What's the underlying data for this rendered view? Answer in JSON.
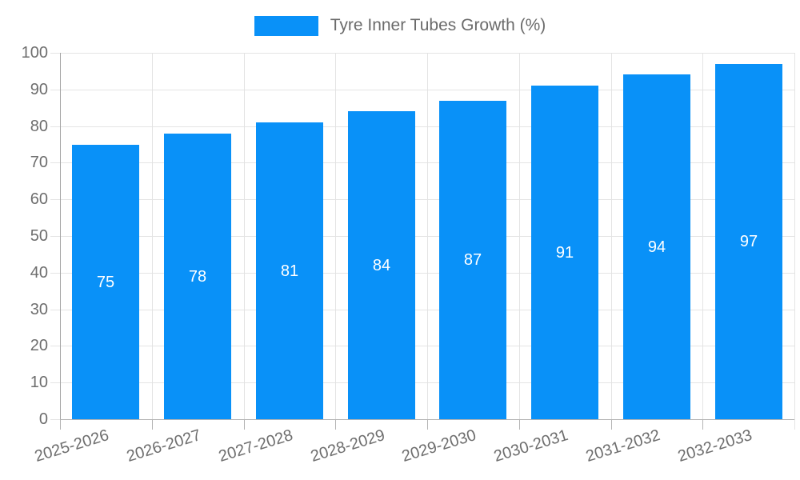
{
  "legend": {
    "label": "Tyre Inner Tubes Growth (%)"
  },
  "colors": {
    "bar": "#0991f8",
    "grid_light": "#e3e3e3",
    "axis_line": "#a6a6a6",
    "baseline": "#b3b3b3",
    "tick_left": "#e3e3e3",
    "tick_bottom": "#b3b3b3",
    "label_grey": "#6e6e6e",
    "legend_text": "#6b6b6b",
    "value_label": "#ffffff"
  },
  "chart_data": {
    "type": "bar",
    "title": "Tyre Inner Tubes Growth (%)",
    "categories": [
      "2025-2026",
      "2026-2027",
      "2027-2028",
      "2028-2029",
      "2029-2030",
      "2030-2031",
      "2031-2032",
      "2032-2033"
    ],
    "values": [
      75,
      78,
      81,
      84,
      87,
      91,
      94,
      97
    ],
    "xlabel": "",
    "ylabel": "",
    "ylim": [
      0,
      100
    ],
    "yticks": [
      0,
      10,
      20,
      30,
      40,
      50,
      60,
      70,
      80,
      90,
      100
    ],
    "grid": true,
    "legend_position": "top",
    "bar_labels_inside": true,
    "x_label_rotation_deg": -17
  }
}
